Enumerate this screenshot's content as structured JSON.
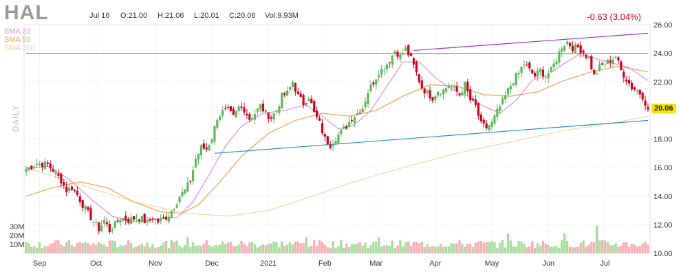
{
  "header": {
    "ticker": "HAL",
    "date": "Jul 16",
    "open": "O:21.00",
    "high": "H:21.06",
    "low": "L:20.01",
    "close": "C:20.06",
    "volume": "Vol:9.93M",
    "change": "-0.63 (3.04%)",
    "last_price": "20.06",
    "period_label": "DAILY"
  },
  "legend": [
    {
      "label": "SMA 20",
      "color": "#e38ce3"
    },
    {
      "label": "SMA 50",
      "color": "#f0a04a"
    },
    {
      "label": "SMA 200",
      "color": "#f5d29a"
    }
  ],
  "colors": {
    "up": "#5cb85c",
    "down": "#d0021b",
    "up_volume": "#a9dca0",
    "down_volume": "#f3b1b6",
    "resistance_line": "#9b30d9",
    "horizontal_line": "#8c7bd9",
    "support_line": "#2a8fd0"
  },
  "chart_data": {
    "type": "candlestick",
    "y_ticks": [
      "26.00",
      "24.00",
      "22.00",
      "20.00",
      "18.00",
      "16.00",
      "14.00",
      "12.00",
      "10.00"
    ],
    "ylim": [
      10,
      26
    ],
    "x_ticks": [
      {
        "label": "Sep",
        "index": 5
      },
      {
        "label": "Oct",
        "index": 26
      },
      {
        "label": "Nov",
        "index": 48
      },
      {
        "label": "Dec",
        "index": 69
      },
      {
        "label": "2021",
        "index": 90
      },
      {
        "label": "Feb",
        "index": 111
      },
      {
        "label": "Mar",
        "index": 130
      },
      {
        "label": "Apr",
        "index": 152
      },
      {
        "label": "May",
        "index": 173
      },
      {
        "label": "Jun",
        "index": 194
      },
      {
        "label": "Jul",
        "index": 215
      }
    ],
    "volume_ticks": [
      {
        "label": "30M",
        "value": 30
      },
      {
        "label": "20M",
        "value": 20
      },
      {
        "label": "10M",
        "value": 10
      }
    ],
    "close_path": [
      [
        0,
        15.9
      ],
      [
        4,
        16.3
      ],
      [
        8,
        16.2
      ],
      [
        11,
        15.6
      ],
      [
        13,
        15.1
      ],
      [
        15,
        14.4
      ],
      [
        17,
        14.6
      ],
      [
        19,
        14.1
      ],
      [
        21,
        13.4
      ],
      [
        23,
        12.8
      ],
      [
        25,
        12.2
      ],
      [
        27,
        11.7
      ],
      [
        29,
        12.3
      ],
      [
        31,
        11.6
      ],
      [
        33,
        12.0
      ],
      [
        35,
        12.5
      ],
      [
        38,
        12.3
      ],
      [
        41,
        12.5
      ],
      [
        43,
        12.4
      ],
      [
        45,
        12.1
      ],
      [
        47,
        12.5
      ],
      [
        49,
        12.2
      ],
      [
        51,
        12.4
      ],
      [
        53,
        12.7
      ],
      [
        55,
        13.3
      ],
      [
        57,
        14.0
      ],
      [
        59,
        14.4
      ],
      [
        61,
        15.1
      ],
      [
        63,
        16.6
      ],
      [
        65,
        17.4
      ],
      [
        67,
        17.3
      ],
      [
        69,
        18.1
      ],
      [
        71,
        19.5
      ],
      [
        73,
        19.9
      ],
      [
        75,
        20.0
      ],
      [
        77,
        19.5
      ],
      [
        79,
        20.2
      ],
      [
        81,
        20.1
      ],
      [
        83,
        19.4
      ],
      [
        85,
        19.8
      ],
      [
        87,
        20.3
      ],
      [
        89,
        19.8
      ],
      [
        91,
        19.5
      ],
      [
        93,
        20.0
      ],
      [
        95,
        21.0
      ],
      [
        97,
        21.2
      ],
      [
        99,
        22.0
      ],
      [
        101,
        21.0
      ],
      [
        103,
        20.5
      ],
      [
        105,
        21.0
      ],
      [
        107,
        19.8
      ],
      [
        109,
        19.1
      ],
      [
        111,
        18.0
      ],
      [
        113,
        17.6
      ],
      [
        115,
        18.1
      ],
      [
        117,
        18.5
      ],
      [
        119,
        18.9
      ],
      [
        121,
        19.5
      ],
      [
        123,
        19.8
      ],
      [
        125,
        20.2
      ],
      [
        127,
        21.3
      ],
      [
        129,
        22.0
      ],
      [
        131,
        22.7
      ],
      [
        133,
        23.0
      ],
      [
        135,
        23.5
      ],
      [
        137,
        24.2
      ],
      [
        139,
        23.8
      ],
      [
        141,
        24.3
      ],
      [
        143,
        23.6
      ],
      [
        145,
        22.6
      ],
      [
        147,
        21.6
      ],
      [
        149,
        21.2
      ],
      [
        151,
        20.9
      ],
      [
        153,
        21.4
      ],
      [
        155,
        21.4
      ],
      [
        157,
        21.8
      ],
      [
        159,
        21.5
      ],
      [
        161,
        21.1
      ],
      [
        163,
        21.8
      ],
      [
        165,
        20.7
      ],
      [
        167,
        20.3
      ],
      [
        169,
        19.0
      ],
      [
        171,
        18.8
      ],
      [
        173,
        19.1
      ],
      [
        175,
        19.9
      ],
      [
        177,
        20.6
      ],
      [
        179,
        21.4
      ],
      [
        181,
        22.1
      ],
      [
        183,
        22.6
      ],
      [
        185,
        23.3
      ],
      [
        187,
        22.8
      ],
      [
        189,
        22.4
      ],
      [
        191,
        22.8
      ],
      [
        193,
        22.4
      ],
      [
        195,
        22.8
      ],
      [
        197,
        23.6
      ],
      [
        199,
        24.5
      ],
      [
        201,
        24.8
      ],
      [
        203,
        24.4
      ],
      [
        205,
        24.4
      ],
      [
        207,
        24.1
      ],
      [
        209,
        23.6
      ],
      [
        211,
        22.4
      ],
      [
        213,
        23.0
      ],
      [
        215,
        23.3
      ],
      [
        217,
        23.5
      ],
      [
        219,
        23.8
      ],
      [
        221,
        22.8
      ],
      [
        223,
        22.2
      ],
      [
        225,
        21.6
      ],
      [
        227,
        21.4
      ],
      [
        229,
        21.0
      ],
      [
        231,
        20.06
      ]
    ],
    "sma20": [
      [
        0,
        15.9
      ],
      [
        8,
        16.1
      ],
      [
        16,
        15.2
      ],
      [
        24,
        13.8
      ],
      [
        32,
        12.6
      ],
      [
        40,
        12.2
      ],
      [
        48,
        12.4
      ],
      [
        56,
        12.5
      ],
      [
        62,
        13.6
      ],
      [
        68,
        15.5
      ],
      [
        74,
        17.5
      ],
      [
        80,
        18.9
      ],
      [
        88,
        19.8
      ],
      [
        96,
        20.0
      ],
      [
        104,
        20.4
      ],
      [
        110,
        19.6
      ],
      [
        116,
        18.7
      ],
      [
        122,
        19.0
      ],
      [
        128,
        20.0
      ],
      [
        134,
        21.7
      ],
      [
        140,
        23.4
      ],
      [
        146,
        23.4
      ],
      [
        152,
        22.3
      ],
      [
        158,
        21.5
      ],
      [
        164,
        21.0
      ],
      [
        170,
        20.3
      ],
      [
        176,
        19.8
      ],
      [
        182,
        20.7
      ],
      [
        188,
        22.1
      ],
      [
        194,
        22.5
      ],
      [
        200,
        23.3
      ],
      [
        206,
        24.0
      ],
      [
        212,
        23.6
      ],
      [
        218,
        23.3
      ],
      [
        224,
        23.0
      ],
      [
        231,
        22.1
      ]
    ],
    "sma50": [
      [
        0,
        14.0
      ],
      [
        10,
        14.6
      ],
      [
        20,
        15.0
      ],
      [
        30,
        14.6
      ],
      [
        40,
        13.6
      ],
      [
        50,
        12.9
      ],
      [
        58,
        12.8
      ],
      [
        64,
        13.4
      ],
      [
        72,
        15.0
      ],
      [
        80,
        16.8
      ],
      [
        90,
        18.4
      ],
      [
        100,
        19.3
      ],
      [
        110,
        19.8
      ],
      [
        120,
        19.6
      ],
      [
        130,
        20.0
      ],
      [
        140,
        21.0
      ],
      [
        150,
        21.8
      ],
      [
        160,
        21.7
      ],
      [
        170,
        21.1
      ],
      [
        180,
        21.0
      ],
      [
        190,
        21.3
      ],
      [
        200,
        22.1
      ],
      [
        210,
        22.7
      ],
      [
        220,
        23.1
      ],
      [
        231,
        22.7
      ]
    ],
    "sma200": [
      [
        0,
        16.0
      ],
      [
        20,
        14.8
      ],
      [
        40,
        13.6
      ],
      [
        60,
        12.8
      ],
      [
        75,
        12.6
      ],
      [
        90,
        13.0
      ],
      [
        105,
        13.9
      ],
      [
        120,
        14.9
      ],
      [
        140,
        16.0
      ],
      [
        160,
        17.0
      ],
      [
        180,
        17.8
      ],
      [
        200,
        18.6
      ],
      [
        220,
        19.2
      ],
      [
        231,
        19.6
      ]
    ],
    "trend_lines": [
      {
        "name": "resistance",
        "from": [
          144,
          24.2
        ],
        "to": [
          231,
          25.4
        ]
      },
      {
        "name": "horizontal",
        "from": [
          0,
          24.0
        ],
        "to": [
          231,
          24.0
        ]
      },
      {
        "name": "support",
        "from": [
          70,
          17.0
        ],
        "to": [
          231,
          19.3
        ]
      }
    ]
  }
}
